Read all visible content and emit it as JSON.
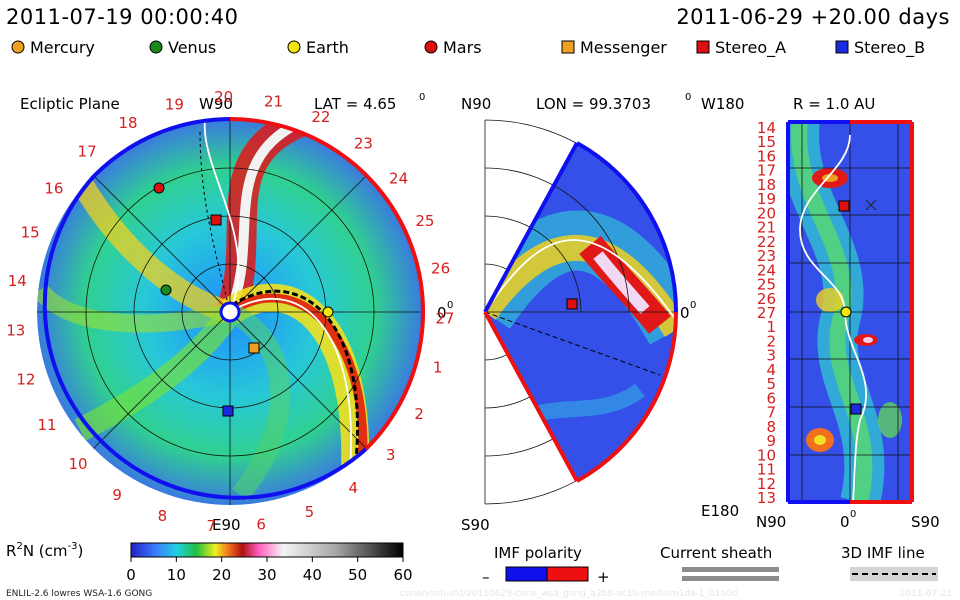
{
  "header": {
    "timestamp": "2011-07-19 00:00:40",
    "forecast": "2011-06-29 +20.00 days"
  },
  "legend": [
    {
      "name": "Mercury",
      "color": "#f0a020",
      "shape": "circle"
    },
    {
      "name": "Venus",
      "color": "#1a8a1a",
      "shape": "circle"
    },
    {
      "name": "Earth",
      "color": "#f5e60a",
      "shape": "circle"
    },
    {
      "name": "Mars",
      "color": "#dd1010",
      "shape": "circle"
    },
    {
      "name": "Messenger",
      "color": "#f0a020",
      "shape": "square"
    },
    {
      "name": "Stereo_A",
      "color": "#dd1010",
      "shape": "square"
    },
    {
      "name": "Stereo_B",
      "color": "#1a2ae0",
      "shape": "square"
    }
  ],
  "panels": {
    "ecliptic": {
      "title": "Ecliptic Plane",
      "top": "W90",
      "bottom": "E90",
      "lat_label": "LAT = 4.65",
      "lat_sup": "0",
      "right_label": "0",
      "right_sup": "0"
    },
    "meridional": {
      "top": "N90",
      "bottom": "S90",
      "lon_label": "LON = 99.3703",
      "lon_sup": "0",
      "right_label": "0",
      "right_sup": "0"
    },
    "radial": {
      "top_left": "W180",
      "bottom_left": "E180",
      "r_label": "R = 1.0 AU",
      "x_left": "N90",
      "x_mid": "0",
      "x_mid_sup": "0",
      "x_right": "S90"
    }
  },
  "chart_data": {
    "type": "heatmap",
    "quantity": "R",
    "quantity_sup": "2",
    "quantity_rest": "N (cm",
    "quantity_unit_sup": "-3",
    "quantity_close": ")",
    "colorbar_ticks": [
      "0",
      "10",
      "20",
      "30",
      "40",
      "50",
      "60"
    ],
    "colorbar_range": [
      0,
      60
    ],
    "ecliptic_day_labels": [
      "19",
      "20",
      "21",
      "22",
      "23",
      "24",
      "25",
      "26",
      "27",
      "1",
      "2",
      "3",
      "4",
      "5",
      "6",
      "7",
      "8",
      "9",
      "10",
      "11",
      "12",
      "13",
      "14",
      "15",
      "16",
      "17",
      "18"
    ],
    "radial_day_labels": [
      "14",
      "15",
      "16",
      "17",
      "18",
      "19",
      "20",
      "21",
      "22",
      "23",
      "24",
      "25",
      "26",
      "27",
      "1",
      "2",
      "3",
      "4",
      "5",
      "6",
      "7",
      "8",
      "9",
      "10",
      "11",
      "12",
      "13"
    ]
  },
  "bottom_legend": {
    "imf_title": "IMF polarity",
    "imf_minus": "–",
    "imf_plus": "+",
    "sheath_title": "Current sheath",
    "imf3d_title": "3D IMF line"
  },
  "footer": {
    "model": "ENLIL-2.6 lowres WSA-1.6 GONG",
    "file": "cone/vsoh-eld/20110629-cone_wsa_gong_a2b8-ac1b-medium1da-1_01a0d",
    "date": "2011-07-21"
  }
}
